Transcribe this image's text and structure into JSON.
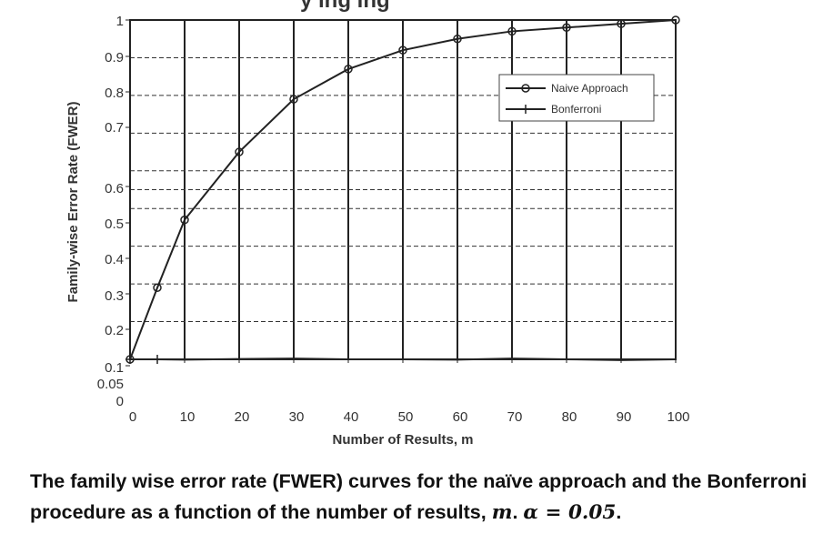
{
  "chart_data": {
    "type": "line",
    "title_fragment": "y ing  ing",
    "xlabel": "Number of Results, m",
    "ylabel": "Family-wise Error Rate (FWER)",
    "x_ticks": [
      0,
      10,
      20,
      30,
      40,
      50,
      60,
      70,
      80,
      90,
      100
    ],
    "y_ticks": [
      {
        "value": 0,
        "label": "0"
      },
      {
        "value": 0.05,
        "label": "0.05"
      },
      {
        "value": 0.1,
        "label": "0.1"
      },
      {
        "value": 0.2,
        "label": "0.2"
      },
      {
        "value": 0.3,
        "label": "0.3"
      },
      {
        "value": 0.4,
        "label": "0.4"
      },
      {
        "value": 0.5,
        "label": "0.5"
      },
      {
        "value": 0.6,
        "label": "0.6"
      },
      {
        "value": 0.7,
        "label": "0.7"
      },
      {
        "value": 0.8,
        "label": "0.8"
      },
      {
        "value": 0.9,
        "label": "0.9"
      },
      {
        "value": 1,
        "label": "1"
      }
    ],
    "xlim": [
      0,
      100
    ],
    "ylim": [
      0.1,
      1
    ],
    "grid": true,
    "legend_position": "top-right",
    "series": [
      {
        "name": "Naive Approach",
        "marker": "circle",
        "x": [
          0,
          5,
          10,
          20,
          30,
          40,
          50,
          60,
          70,
          80,
          90,
          100
        ],
        "y": [
          0.1,
          0.29,
          0.47,
          0.65,
          0.79,
          0.87,
          0.92,
          0.95,
          0.97,
          0.98,
          0.99,
          1.0
        ]
      },
      {
        "name": "Bonferroni",
        "marker": "plus",
        "x": [
          0,
          5,
          10,
          20,
          30,
          40,
          50,
          60,
          70,
          80,
          90,
          100
        ],
        "y": [
          0.1,
          0.1,
          0.099,
          0.101,
          0.102,
          0.1,
          0.1,
          0.099,
          0.102,
          0.1,
          0.098,
          0.1
        ]
      }
    ]
  },
  "caption": {
    "text": "The family wise error rate (FWER) curves for the naïve approach and the Bonferroni procedure as a function of the number of results, ",
    "m_symbol": "m",
    "dot": ". ",
    "alpha_expr": "α = 0.05",
    "end": "."
  }
}
